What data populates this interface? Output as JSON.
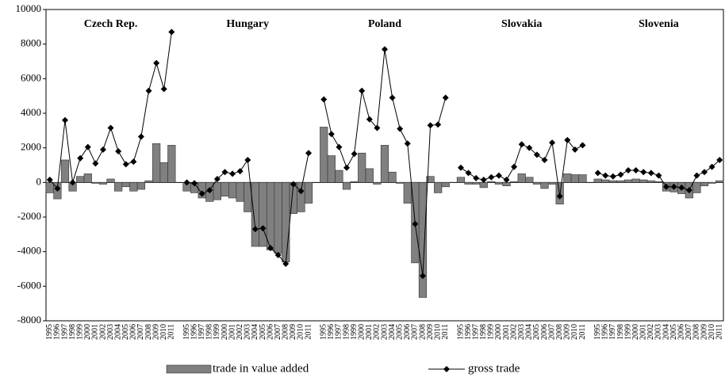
{
  "chart_data": {
    "type": "bar_line",
    "group_labels": [
      "Czech Rep.",
      "Hungary",
      "Poland",
      "Slovakia",
      "Slovenia"
    ],
    "categories": [
      "1995",
      "1996",
      "1997",
      "1998",
      "1999",
      "2000",
      "2001",
      "2002",
      "2003",
      "2004",
      "2005",
      "2006",
      "2007",
      "2008",
      "2009",
      "2010",
      "2011",
      null,
      "1995",
      "1996",
      "1997",
      "1998",
      "1999",
      "2000",
      "2001",
      "2002",
      "2003",
      "2004",
      "2005",
      "2006",
      "2007",
      "2008",
      "2009",
      "2010",
      "2011",
      null,
      "1995",
      "1996",
      "1997",
      "1998",
      "1999",
      "2000",
      "2001",
      "2002",
      "2003",
      "2004",
      "2005",
      "2006",
      "2007",
      "2008",
      "2009",
      "2010",
      "2011",
      null,
      "1995",
      "1996",
      "1997",
      "1998",
      "1999",
      "2000",
      "2001",
      "2002",
      "2003",
      "2004",
      "2005",
      "2006",
      "2007",
      "2008",
      "2009",
      "2010",
      "2011",
      null,
      "1995",
      "1996",
      "1997",
      "1998",
      "1999",
      "2000",
      "2001",
      "2002",
      "2003",
      "2004",
      "2005",
      "2006",
      "2007",
      "2008",
      "2009",
      "2010",
      "2011"
    ],
    "series": [
      {
        "name": "trade in value added",
        "type": "bar",
        "color": "#808080",
        "values": [
          -600,
          -950,
          1300,
          -500,
          350,
          500,
          -50,
          -100,
          200,
          -500,
          -250,
          -500,
          -400,
          100,
          2250,
          1150,
          2150,
          null,
          -500,
          -600,
          -900,
          -1100,
          -1000,
          -800,
          -900,
          -1100,
          -1700,
          -3700,
          -3700,
          -3900,
          -4100,
          -4600,
          -1800,
          -1700,
          -1200,
          null,
          3200,
          1550,
          700,
          -400,
          50,
          1700,
          800,
          -100,
          2150,
          600,
          -50,
          -1200,
          -4650,
          -6650,
          350,
          -600,
          -250,
          null,
          300,
          -100,
          -100,
          -300,
          50,
          -100,
          -200,
          50,
          500,
          300,
          -100,
          -350,
          -100,
          -1250,
          500,
          450,
          450,
          null,
          200,
          150,
          100,
          100,
          150,
          200,
          150,
          100,
          50,
          -500,
          -550,
          -650,
          -900,
          -600,
          -200,
          -50,
          100
        ]
      },
      {
        "name": "gross trade",
        "type": "line",
        "color": "#000000",
        "values": [
          150,
          -350,
          3600,
          0,
          1400,
          2050,
          1100,
          1900,
          3150,
          1800,
          1050,
          1200,
          2650,
          5300,
          6900,
          5400,
          8700,
          null,
          0,
          -50,
          -650,
          -450,
          200,
          600,
          500,
          650,
          1300,
          -2700,
          -2650,
          -3800,
          -4200,
          -4700,
          -100,
          -500,
          1700,
          null,
          4800,
          2800,
          2050,
          850,
          1650,
          5300,
          3650,
          3150,
          7700,
          4900,
          3100,
          2250,
          -2400,
          -5400,
          3300,
          3350,
          4900,
          null,
          850,
          550,
          250,
          150,
          300,
          400,
          150,
          900,
          2200,
          2000,
          1600,
          1300,
          2300,
          -800,
          2450,
          1900,
          2150,
          null,
          550,
          400,
          350,
          450,
          700,
          700,
          600,
          550,
          400,
          -250,
          -250,
          -300,
          -450,
          400,
          600,
          900,
          1300
        ]
      }
    ],
    "ylim": [
      -8000,
      10000
    ],
    "yticks": [
      -8000,
      -6000,
      -4000,
      -2000,
      0,
      2000,
      4000,
      6000,
      8000,
      10000
    ]
  }
}
